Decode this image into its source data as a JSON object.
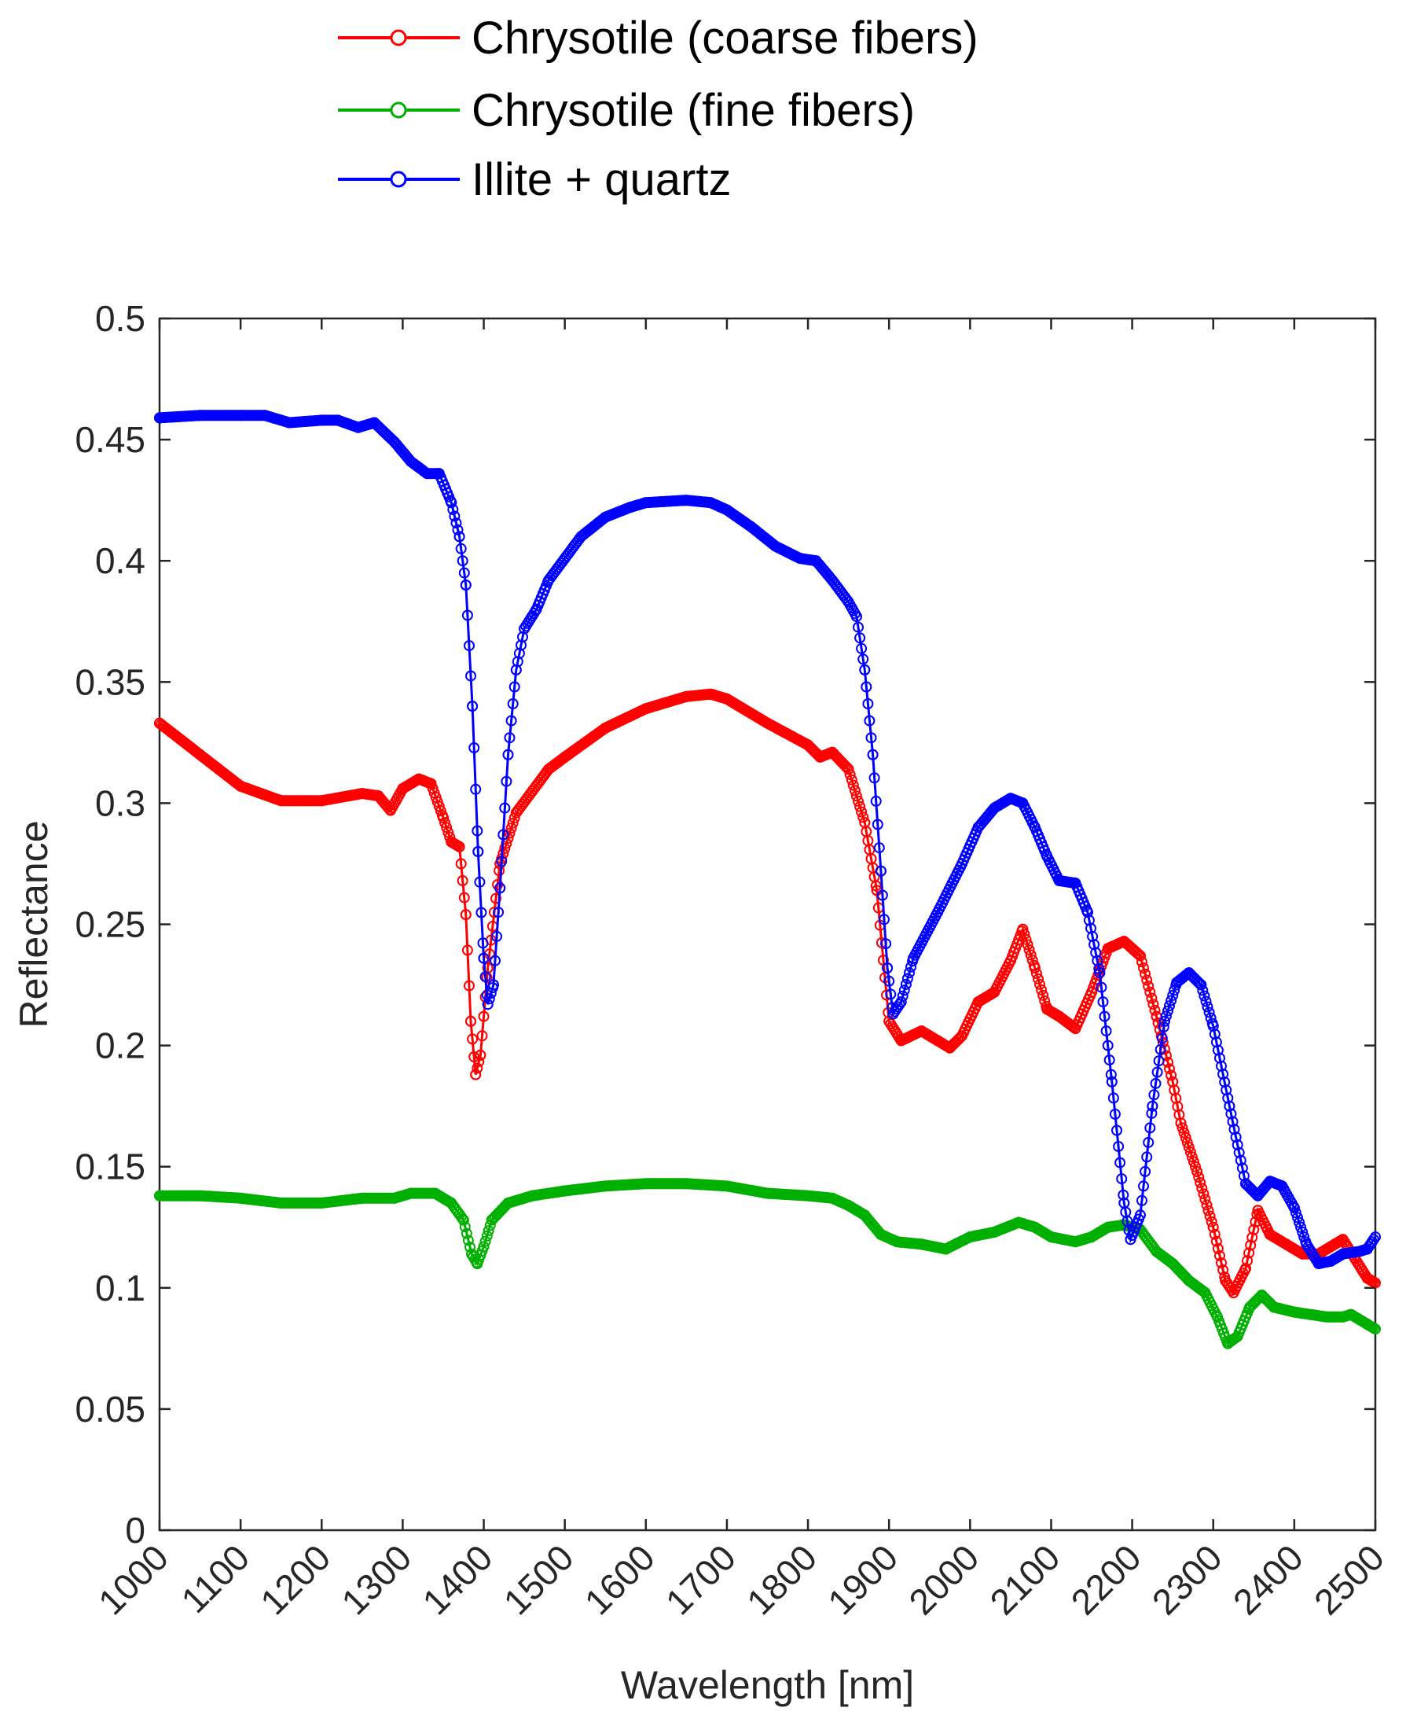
{
  "chart_data": {
    "type": "line",
    "title": "",
    "xlabel": "Wavelength [nm]",
    "ylabel": "Reflectance",
    "xlim": [
      1000,
      2500
    ],
    "ylim": [
      0,
      0.5
    ],
    "xticks": [
      "1000",
      "1100",
      "1200",
      "1300",
      "1400",
      "1500",
      "1600",
      "1700",
      "1800",
      "1900",
      "2000",
      "2100",
      "2200",
      "2300",
      "2400",
      "2500"
    ],
    "yticks": [
      "0",
      "0.05",
      "0.1",
      "0.15",
      "0.2",
      "0.25",
      "0.3",
      "0.35",
      "0.4",
      "0.45",
      "0.5"
    ],
    "grid": false,
    "legend_placement": "top",
    "marker": "circle",
    "series": [
      {
        "name": "Chrysotile (coarse fibers)",
        "color": "#ff0000",
        "points": [
          [
            1000,
            0.333
          ],
          [
            1050,
            0.32
          ],
          [
            1100,
            0.307
          ],
          [
            1150,
            0.301
          ],
          [
            1200,
            0.301
          ],
          [
            1250,
            0.304
          ],
          [
            1270,
            0.303
          ],
          [
            1285,
            0.297
          ],
          [
            1300,
            0.306
          ],
          [
            1320,
            0.31
          ],
          [
            1335,
            0.308
          ],
          [
            1350,
            0.294
          ],
          [
            1360,
            0.284
          ],
          [
            1370,
            0.282
          ],
          [
            1378,
            0.254
          ],
          [
            1384,
            0.21
          ],
          [
            1390,
            0.188
          ],
          [
            1396,
            0.196
          ],
          [
            1405,
            0.232
          ],
          [
            1420,
            0.275
          ],
          [
            1440,
            0.296
          ],
          [
            1460,
            0.305
          ],
          [
            1480,
            0.314
          ],
          [
            1500,
            0.319
          ],
          [
            1550,
            0.331
          ],
          [
            1600,
            0.339
          ],
          [
            1650,
            0.344
          ],
          [
            1680,
            0.345
          ],
          [
            1700,
            0.343
          ],
          [
            1750,
            0.333
          ],
          [
            1800,
            0.324
          ],
          [
            1815,
            0.319
          ],
          [
            1830,
            0.321
          ],
          [
            1850,
            0.314
          ],
          [
            1870,
            0.292
          ],
          [
            1885,
            0.264
          ],
          [
            1900,
            0.21
          ],
          [
            1915,
            0.202
          ],
          [
            1940,
            0.206
          ],
          [
            1960,
            0.202
          ],
          [
            1975,
            0.199
          ],
          [
            1990,
            0.204
          ],
          [
            2010,
            0.218
          ],
          [
            2030,
            0.222
          ],
          [
            2050,
            0.235
          ],
          [
            2065,
            0.248
          ],
          [
            2080,
            0.232
          ],
          [
            2095,
            0.215
          ],
          [
            2110,
            0.212
          ],
          [
            2130,
            0.207
          ],
          [
            2150,
            0.222
          ],
          [
            2170,
            0.24
          ],
          [
            2190,
            0.243
          ],
          [
            2210,
            0.237
          ],
          [
            2230,
            0.212
          ],
          [
            2250,
            0.185
          ],
          [
            2260,
            0.168
          ],
          [
            2280,
            0.148
          ],
          [
            2300,
            0.125
          ],
          [
            2315,
            0.103
          ],
          [
            2325,
            0.098
          ],
          [
            2340,
            0.108
          ],
          [
            2355,
            0.132
          ],
          [
            2370,
            0.122
          ],
          [
            2390,
            0.118
          ],
          [
            2410,
            0.114
          ],
          [
            2430,
            0.114
          ],
          [
            2450,
            0.118
          ],
          [
            2460,
            0.12
          ],
          [
            2475,
            0.112
          ],
          [
            2490,
            0.104
          ],
          [
            2500,
            0.102
          ]
        ]
      },
      {
        "name": "Chrysotile (fine fibers)",
        "color": "#00b000",
        "points": [
          [
            1000,
            0.138
          ],
          [
            1050,
            0.138
          ],
          [
            1100,
            0.137
          ],
          [
            1150,
            0.135
          ],
          [
            1200,
            0.135
          ],
          [
            1250,
            0.137
          ],
          [
            1290,
            0.137
          ],
          [
            1310,
            0.139
          ],
          [
            1340,
            0.139
          ],
          [
            1360,
            0.135
          ],
          [
            1375,
            0.128
          ],
          [
            1385,
            0.114
          ],
          [
            1392,
            0.11
          ],
          [
            1400,
            0.117
          ],
          [
            1410,
            0.128
          ],
          [
            1430,
            0.135
          ],
          [
            1460,
            0.138
          ],
          [
            1500,
            0.14
          ],
          [
            1550,
            0.142
          ],
          [
            1600,
            0.143
          ],
          [
            1650,
            0.143
          ],
          [
            1700,
            0.142
          ],
          [
            1750,
            0.139
          ],
          [
            1800,
            0.138
          ],
          [
            1830,
            0.137
          ],
          [
            1850,
            0.134
          ],
          [
            1870,
            0.13
          ],
          [
            1890,
            0.122
          ],
          [
            1910,
            0.119
          ],
          [
            1940,
            0.118
          ],
          [
            1970,
            0.116
          ],
          [
            2000,
            0.121
          ],
          [
            2030,
            0.123
          ],
          [
            2060,
            0.127
          ],
          [
            2080,
            0.125
          ],
          [
            2100,
            0.121
          ],
          [
            2130,
            0.119
          ],
          [
            2150,
            0.121
          ],
          [
            2170,
            0.125
          ],
          [
            2190,
            0.126
          ],
          [
            2210,
            0.124
          ],
          [
            2230,
            0.115
          ],
          [
            2250,
            0.11
          ],
          [
            2270,
            0.103
          ],
          [
            2290,
            0.098
          ],
          [
            2305,
            0.088
          ],
          [
            2318,
            0.077
          ],
          [
            2330,
            0.08
          ],
          [
            2345,
            0.092
          ],
          [
            2360,
            0.097
          ],
          [
            2375,
            0.092
          ],
          [
            2400,
            0.09
          ],
          [
            2420,
            0.089
          ],
          [
            2440,
            0.088
          ],
          [
            2460,
            0.088
          ],
          [
            2470,
            0.089
          ],
          [
            2480,
            0.087
          ],
          [
            2490,
            0.085
          ],
          [
            2500,
            0.083
          ]
        ]
      },
      {
        "name": "Illite + quartz",
        "color": "#0000ff",
        "points": [
          [
            1000,
            0.459
          ],
          [
            1050,
            0.46
          ],
          [
            1100,
            0.46
          ],
          [
            1130,
            0.46
          ],
          [
            1160,
            0.457
          ],
          [
            1200,
            0.458
          ],
          [
            1220,
            0.458
          ],
          [
            1245,
            0.455
          ],
          [
            1265,
            0.457
          ],
          [
            1290,
            0.449
          ],
          [
            1310,
            0.441
          ],
          [
            1330,
            0.436
          ],
          [
            1345,
            0.436
          ],
          [
            1360,
            0.424
          ],
          [
            1370,
            0.41
          ],
          [
            1378,
            0.39
          ],
          [
            1386,
            0.34
          ],
          [
            1393,
            0.28
          ],
          [
            1400,
            0.236
          ],
          [
            1405,
            0.217
          ],
          [
            1412,
            0.225
          ],
          [
            1420,
            0.265
          ],
          [
            1430,
            0.32
          ],
          [
            1440,
            0.355
          ],
          [
            1450,
            0.372
          ],
          [
            1465,
            0.38
          ],
          [
            1480,
            0.392
          ],
          [
            1500,
            0.401
          ],
          [
            1520,
            0.41
          ],
          [
            1550,
            0.418
          ],
          [
            1580,
            0.422
          ],
          [
            1600,
            0.424
          ],
          [
            1650,
            0.425
          ],
          [
            1680,
            0.424
          ],
          [
            1700,
            0.421
          ],
          [
            1730,
            0.414
          ],
          [
            1760,
            0.406
          ],
          [
            1790,
            0.401
          ],
          [
            1810,
            0.4
          ],
          [
            1830,
            0.392
          ],
          [
            1850,
            0.383
          ],
          [
            1860,
            0.377
          ],
          [
            1870,
            0.355
          ],
          [
            1880,
            0.32
          ],
          [
            1890,
            0.272
          ],
          [
            1898,
            0.232
          ],
          [
            1905,
            0.213
          ],
          [
            1915,
            0.218
          ],
          [
            1930,
            0.236
          ],
          [
            1960,
            0.255
          ],
          [
            1990,
            0.275
          ],
          [
            2010,
            0.29
          ],
          [
            2030,
            0.298
          ],
          [
            2050,
            0.302
          ],
          [
            2065,
            0.3
          ],
          [
            2080,
            0.29
          ],
          [
            2095,
            0.278
          ],
          [
            2110,
            0.268
          ],
          [
            2130,
            0.267
          ],
          [
            2145,
            0.255
          ],
          [
            2160,
            0.23
          ],
          [
            2175,
            0.185
          ],
          [
            2190,
            0.135
          ],
          [
            2198,
            0.12
          ],
          [
            2210,
            0.13
          ],
          [
            2225,
            0.175
          ],
          [
            2240,
            0.21
          ],
          [
            2255,
            0.226
          ],
          [
            2270,
            0.23
          ],
          [
            2285,
            0.225
          ],
          [
            2300,
            0.208
          ],
          [
            2320,
            0.175
          ],
          [
            2340,
            0.143
          ],
          [
            2355,
            0.138
          ],
          [
            2370,
            0.144
          ],
          [
            2385,
            0.142
          ],
          [
            2400,
            0.133
          ],
          [
            2415,
            0.118
          ],
          [
            2430,
            0.11
          ],
          [
            2445,
            0.111
          ],
          [
            2460,
            0.114
          ],
          [
            2480,
            0.115
          ],
          [
            2490,
            0.116
          ],
          [
            2500,
            0.121
          ]
        ]
      }
    ]
  }
}
